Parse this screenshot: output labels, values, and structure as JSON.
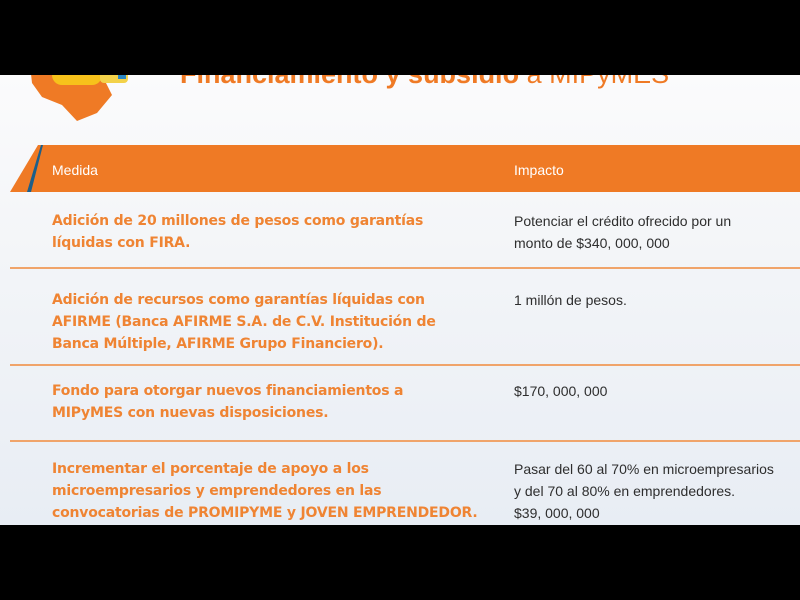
{
  "title": {
    "bold": "Financiamiento y subsidio",
    "light": " a MIPyMES"
  },
  "colors": {
    "accent": "#ef7a25",
    "stripe": "#1d5f8a",
    "text": "#2e2e2e"
  },
  "table": {
    "headers": {
      "medida": "Medida",
      "impacto": "Impacto"
    },
    "rows": [
      {
        "medida": [
          "Adición de 20 millones de pesos como garantías",
          "líquidas con FIRA."
        ],
        "impacto": [
          "Potenciar el crédito ofrecido por un",
          "monto de $340, 000, 000"
        ]
      },
      {
        "medida": [
          "Adición de recursos como garantías líquidas con",
          "AFIRME (Banca AFIRME S.A. de C.V. Institución de",
          "Banca Múltiple, AFIRME Grupo Financiero)."
        ],
        "impacto": [
          "1 millón de pesos."
        ]
      },
      {
        "medida": [
          "Fondo para otorgar nuevos financiamientos a",
          "MIPyMES con nuevas disposiciones."
        ],
        "impacto": [
          "$170, 000, 000"
        ]
      },
      {
        "medida": [
          "Incrementar el porcentaje de apoyo a los",
          "microempresarios y emprendedores en las",
          "convocatorias de PROMIPYME y JOVEN EMPRENDEDOR."
        ],
        "impacto": [
          "Pasar del 60 al 70% en microempresarios",
          "y del 70 al 80% en emprendedores.",
          "$39, 000, 000"
        ]
      }
    ]
  }
}
